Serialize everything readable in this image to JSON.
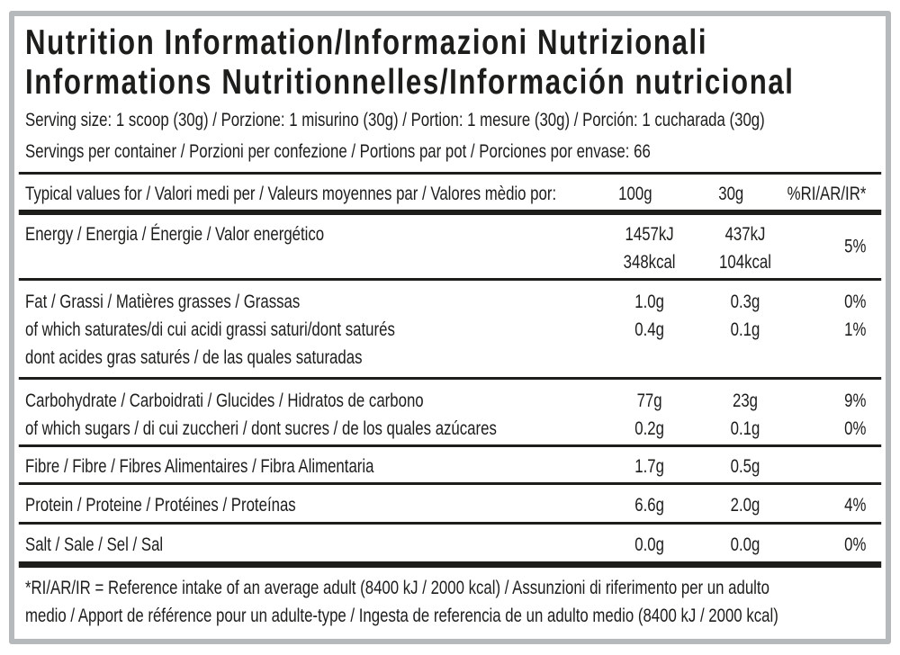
{
  "label": {
    "title": {
      "line1": "Nutrition Information/Informazioni Nutrizionali",
      "line2": "Informations Nutritionnelles/Información nutricional"
    },
    "serving_size": "Serving size: 1 scoop (30g) / Porzione: 1 misurino (30g) / Portion: 1 mesure (30g) / Porción: 1 cucharada (30g)",
    "servings_per_container": "Servings per container / Porzioni per confezione / Portions par pot / Porciones por envase: 66",
    "table": {
      "header": {
        "label": "Typical values for / Valori medi per / Valeurs moyennes par / Valores mèdio por:",
        "cols": [
          "100g",
          "30g",
          "%RI/AR/IR*"
        ]
      },
      "rows": {
        "energy": {
          "line1": {
            "label": "Energy / Energia / Énergie / Valor energético",
            "v100": "1457kJ",
            "v30": "437kJ"
          },
          "line2": {
            "label": "",
            "v100": "348kcal",
            "v30": "104kcal"
          },
          "ri": "5%"
        },
        "fat": {
          "line1": {
            "label": "Fat / Grassi / Matières grasses / Grassas",
            "v100": "1.0g",
            "v30": "0.3g",
            "ri": "0%"
          },
          "line2": {
            "label": "of which saturates/di cui acidi grassi saturi/dont saturés",
            "v100": "0.4g",
            "v30": "0.1g",
            "ri": "1%"
          },
          "line3": {
            "label": "dont acides gras saturés / de las quales saturadas",
            "v100": "",
            "v30": "",
            "ri": ""
          }
        },
        "carbohydrate": {
          "line1": {
            "label": "Carbohydrate / Carboidrati / Glucides / Hidratos de carbono",
            "v100": "77g",
            "v30": "23g",
            "ri": "9%"
          },
          "line2": {
            "label": "of which sugars / di cui zuccheri / dont sucres / de los quales azúcares",
            "v100": "0.2g",
            "v30": "0.1g",
            "ri": "0%"
          }
        },
        "fibre": {
          "line1": {
            "label": "Fibre / Fibre / Fibres Alimentaires / Fibra Alimentaria",
            "v100": "1.7g",
            "v30": "0.5g",
            "ri": ""
          }
        },
        "protein": {
          "line1": {
            "label": "Protein / Proteine / Protéines / Proteínas",
            "v100": "6.6g",
            "v30": "2.0g",
            "ri": "4%"
          }
        },
        "salt": {
          "line1": {
            "label": "Salt / Sale / Sel / Sal",
            "v100": "0.0g",
            "v30": "0.0g",
            "ri": "0%"
          }
        }
      }
    },
    "footnote": {
      "line1": "*RI/AR/IR = Reference intake of an average adult (8400 kJ / 2000 kcal)  / Assunzioni di riferimento per un adulto",
      "line2": "medio / Apport de référence pour un adulte-type / Ingesta de referencia de un adulto medio (8400 kJ / 2000 kcal)"
    },
    "colors": {
      "text": "#1d1d1b",
      "frame_border": "#b6b9bc",
      "background": "#ffffff"
    }
  }
}
